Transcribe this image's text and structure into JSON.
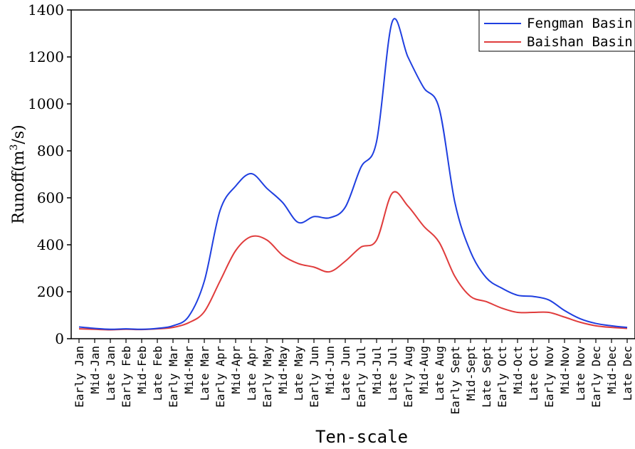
{
  "chart_data": {
    "type": "line",
    "xlabel": "Ten-scale",
    "ylabel": "Runoff(m³/s)",
    "ylabel_parts": {
      "base": "Runoff(m",
      "sup": "3",
      "tail": "/s)"
    },
    "ylim": [
      0,
      1400
    ],
    "yticks": [
      0,
      200,
      400,
      600,
      800,
      1000,
      1200,
      1400
    ],
    "grid": false,
    "legend_position": "top-right",
    "categories": [
      "Early Jan",
      "Mid-Jan",
      "Late Jan",
      "Early Feb",
      "Mid-Feb",
      "Late Feb",
      "Early Mar",
      "Mid-Mar",
      "Late Mar",
      "Early Apr",
      "Mid-Apr",
      "Late Apr",
      "Early May",
      "Mid-May",
      "Late May",
      "Early Jun",
      "Mid-Jun",
      "Late Jun",
      "Early Jul",
      "Mid-Jul",
      "Late Jul",
      "Early Aug",
      "Mid-Aug",
      "Late Aug",
      "Early Sept",
      "Mid-Sept",
      "Late Sept",
      "Early Oct",
      "Mid-Oct",
      "Late Oct",
      "Early Nov",
      "Mid-Nov",
      "Late Nov",
      "Early Dec",
      "Mid-Dec",
      "Late Dec"
    ],
    "series": [
      {
        "name": "Fengman Basin",
        "color": "#1f3fe0",
        "values": [
          50,
          44,
          40,
          42,
          40,
          44,
          55,
          95,
          245,
          545,
          650,
          703,
          640,
          580,
          495,
          520,
          515,
          560,
          730,
          840,
          1350,
          1200,
          1070,
          980,
          580,
          370,
          260,
          215,
          185,
          180,
          165,
          120,
          85,
          65,
          55,
          48
        ]
      },
      {
        "name": "Baishan Basin",
        "color": "#e03c3c",
        "values": [
          42,
          40,
          38,
          40,
          39,
          42,
          48,
          68,
          115,
          245,
          375,
          435,
          420,
          355,
          320,
          305,
          285,
          330,
          390,
          420,
          620,
          565,
          480,
          410,
          265,
          180,
          158,
          130,
          112,
          112,
          112,
          92,
          70,
          55,
          48,
          44
        ]
      }
    ]
  }
}
